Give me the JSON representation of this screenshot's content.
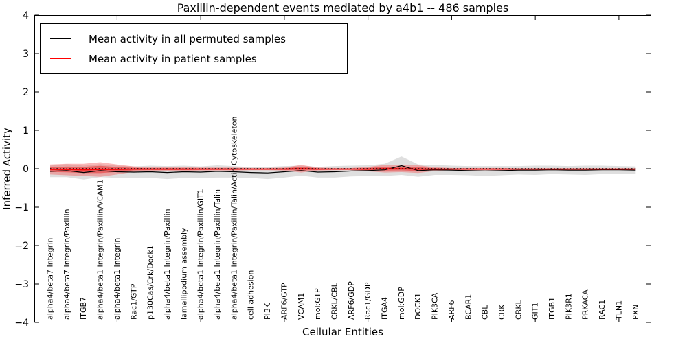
{
  "chart_data": {
    "type": "line",
    "title": "Paxillin-dependent events mediated by a4b1 -- 486 samples",
    "xlabel": "Cellular Entities",
    "ylabel": "Inferred Activity",
    "ylim": [
      -4,
      4
    ],
    "yticks": [
      4,
      3,
      2,
      1,
      0,
      -1,
      -2,
      -3,
      -4
    ],
    "xtick_entity_numbers": [
      5,
      10,
      15,
      20,
      25,
      30,
      35
    ],
    "grid": false,
    "legend_position": "upper left",
    "zero_reference_line": {
      "y": 0,
      "style": "dotted",
      "color": "#000000"
    },
    "categories": [
      "alpha4/beta7 Integrin",
      "alpha4/beta7 Integrin/Paxillin",
      "ITGB7",
      "alpha4/beta1 Integrin/Paxillin/VCAM1",
      "alpha4/beta1 Integrin",
      "Rac1/GTP",
      "p130Cas/Crk/Dock1",
      "alpha4/beta1 Integrin/Paxillin",
      "lamellipodium assembly",
      "alpha4/beta1 Integrin/Paxillin/GIT1",
      "alpha4/beta1 Integrin/Paxillin/Talin",
      "alpha4/beta1 Integrin/Paxillin/Talin/Actin Cytoskeleton",
      "cell adhesion",
      "PI3K",
      "ARF6/GTP",
      "VCAM1",
      "mol:GTP",
      "CRKL/CBL",
      "ARF6/GDP",
      "Rac1/GDP",
      "ITGA4",
      "mol:GDP",
      "DOCK1",
      "PIK3CA",
      "ARF6",
      "BCAR1",
      "CBL",
      "CRK",
      "CRKL",
      "GIT1",
      "ITGB1",
      "PIK3R1",
      "PRKACA",
      "RAC1",
      "TLN1",
      "PXN"
    ],
    "series": [
      {
        "name": "Mean activity in all permuted samples",
        "color": "#000000",
        "band_color": "#b9b9b9",
        "values": [
          -0.07,
          -0.05,
          -0.1,
          -0.05,
          -0.08,
          -0.09,
          -0.08,
          -0.1,
          -0.08,
          -0.09,
          -0.07,
          -0.08,
          -0.1,
          -0.11,
          -0.08,
          -0.05,
          -0.09,
          -0.08,
          -0.06,
          -0.05,
          -0.03,
          0.08,
          -0.05,
          -0.03,
          -0.04,
          -0.05,
          -0.06,
          -0.05,
          -0.04,
          -0.04,
          -0.03,
          -0.04,
          -0.04,
          -0.03,
          -0.03,
          -0.04
        ],
        "band_halfwidth": [
          0.15,
          0.17,
          0.18,
          0.17,
          0.16,
          0.15,
          0.16,
          0.17,
          0.16,
          0.15,
          0.16,
          0.15,
          0.14,
          0.16,
          0.15,
          0.13,
          0.14,
          0.15,
          0.14,
          0.14,
          0.16,
          0.24,
          0.16,
          0.13,
          0.12,
          0.12,
          0.13,
          0.12,
          0.11,
          0.12,
          0.11,
          0.11,
          0.12,
          0.11,
          0.1,
          0.1
        ]
      },
      {
        "name": "Mean activity in patient samples",
        "color": "#ff0000",
        "band_color": "#f25555",
        "band_inner_color": "#e82222",
        "values": [
          -0.02,
          -0.02,
          -0.03,
          -0.02,
          -0.02,
          -0.01,
          -0.01,
          -0.01,
          -0.01,
          -0.01,
          -0.01,
          -0.01,
          -0.01,
          -0.01,
          -0.01,
          0.0,
          -0.01,
          -0.01,
          -0.01,
          -0.01,
          0.0,
          0.0,
          -0.01,
          -0.01,
          -0.01,
          -0.01,
          -0.01,
          -0.01,
          -0.01,
          -0.01,
          -0.01,
          -0.01,
          -0.01,
          -0.01,
          -0.01,
          -0.01
        ],
        "band_halfwidth": [
          0.13,
          0.15,
          0.16,
          0.19,
          0.13,
          0.07,
          0.05,
          0.05,
          0.05,
          0.04,
          0.04,
          0.04,
          0.03,
          0.03,
          0.04,
          0.1,
          0.04,
          0.03,
          0.03,
          0.06,
          0.1,
          0.09,
          0.1,
          0.05,
          0.03,
          0.03,
          0.03,
          0.03,
          0.02,
          0.02,
          0.02,
          0.02,
          0.02,
          0.02,
          0.02,
          0.02
        ],
        "band_inner_halfwidth": [
          0.065,
          0.075,
          0.08,
          0.095,
          0.065,
          0.035,
          0.025,
          0.025,
          0.025,
          0.02,
          0.02,
          0.02,
          0.015,
          0.015,
          0.02,
          0.05,
          0.02,
          0.015,
          0.015,
          0.03,
          0.05,
          0.045,
          0.05,
          0.025,
          0.015,
          0.015,
          0.015,
          0.015,
          0.01,
          0.01,
          0.01,
          0.01,
          0.01,
          0.01,
          0.01,
          0.01
        ]
      }
    ]
  }
}
